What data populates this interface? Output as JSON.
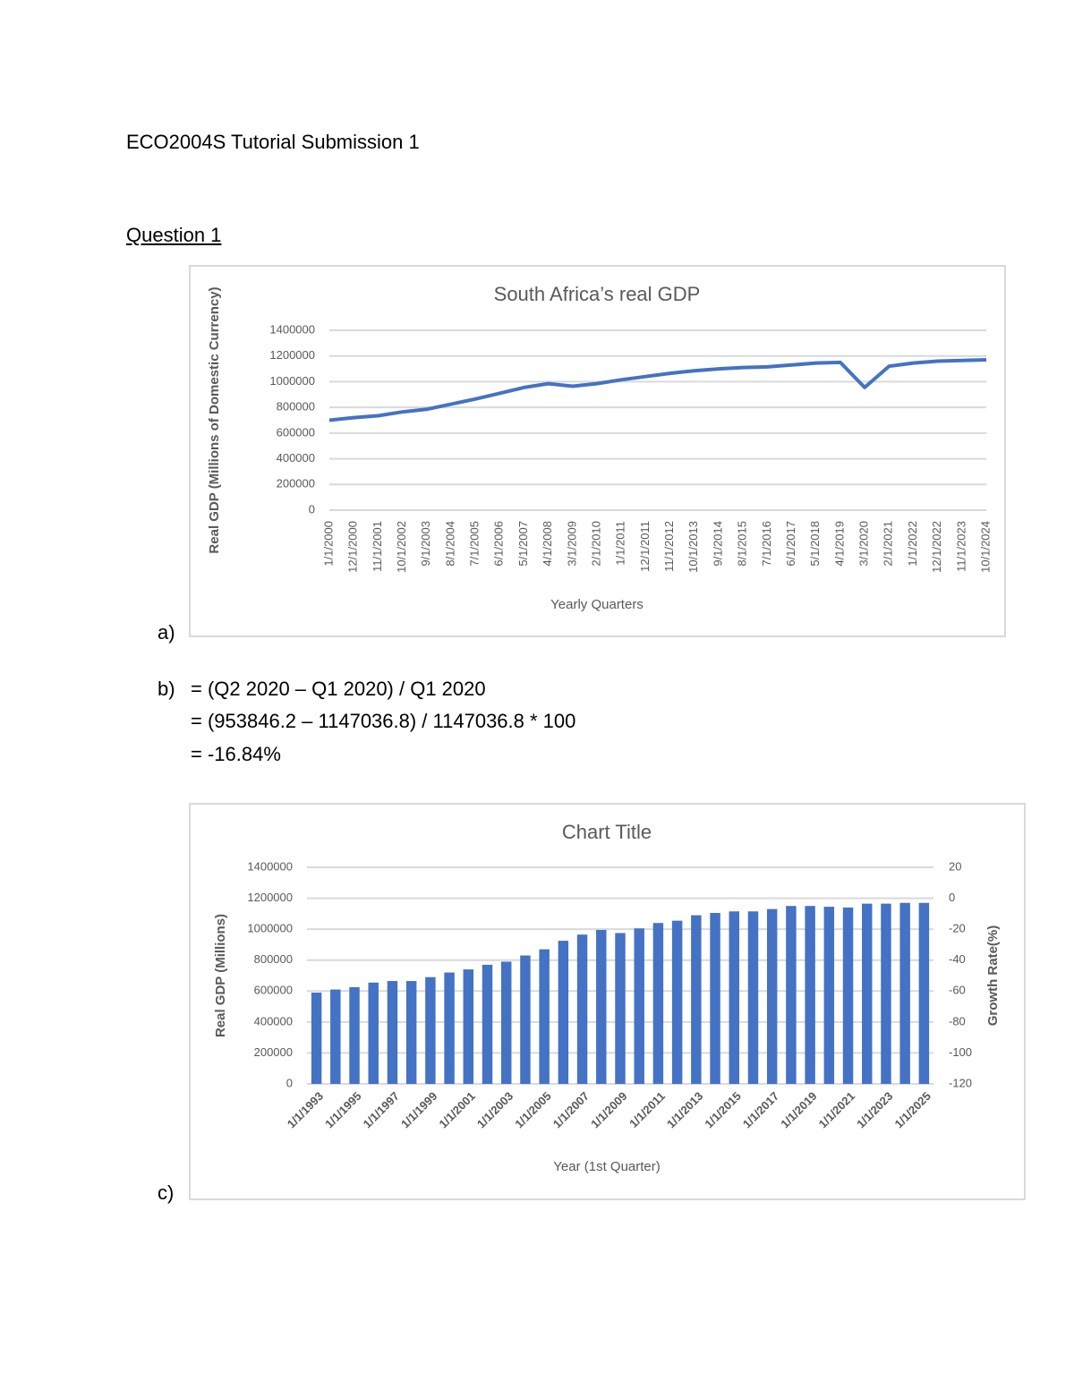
{
  "document": {
    "title": "ECO2004S Tutorial Submission 1",
    "heading": "Question 1",
    "part_a": "a)",
    "part_b": "b)",
    "part_c": "c)",
    "formula": [
      "= (Q2 2020 – Q1 2020) / Q1 2020",
      "= (953846.2 – 1147036.8) / 1147036.8 * 100",
      "= -16.84%"
    ]
  },
  "chart_data": [
    {
      "type": "line",
      "title": "South Africa’s real GDP",
      "xlabel": "Yearly Quarters",
      "ylabel": "Real GDP (Millions of Domestic Currency)",
      "categories": [
        "1/1/2000",
        "12/1/2000",
        "11/1/2001",
        "10/1/2002",
        "9/1/2003",
        "8/1/2004",
        "7/1/2005",
        "6/1/2006",
        "5/1/2007",
        "4/1/2008",
        "3/1/2009",
        "2/1/2010",
        "1/1/2011",
        "12/1/2011",
        "11/1/2012",
        "10/1/2013",
        "9/1/2014",
        "8/1/2015",
        "7/1/2016",
        "6/1/2017",
        "5/1/2018",
        "4/1/2019",
        "3/1/2020",
        "2/1/2021",
        "1/1/2022",
        "12/1/2022",
        "11/1/2023",
        "10/1/2024"
      ],
      "values": [
        700000,
        720000,
        735000,
        765000,
        785000,
        825000,
        865000,
        910000,
        955000,
        985000,
        965000,
        985000,
        1015000,
        1040000,
        1065000,
        1085000,
        1100000,
        1110000,
        1115000,
        1130000,
        1145000,
        1150000,
        955000,
        1120000,
        1145000,
        1160000,
        1165000,
        1170000
      ],
      "color": "#4472c4",
      "ylim": [
        0,
        1400000
      ],
      "yticks": [
        0,
        200000,
        400000,
        600000,
        800000,
        1000000,
        1200000,
        1400000
      ],
      "grid": true
    },
    {
      "type": "bar",
      "title": "Chart Title",
      "xlabel": "Year (1st Quarter)",
      "ylabel": "Real GDP (Millions)",
      "y2label": "Growth Rate(%)",
      "categories": [
        "1/1/1993",
        null,
        "1/1/1995",
        null,
        "1/1/1997",
        null,
        "1/1/1999",
        null,
        "1/1/2001",
        null,
        "1/1/2003",
        null,
        "1/1/2005",
        null,
        "1/1/2007",
        null,
        "1/1/2009",
        null,
        "1/1/2011",
        null,
        "1/1/2013",
        null,
        "1/1/2015",
        null,
        "1/1/2017",
        null,
        "1/1/2019",
        null,
        "1/1/2021",
        null,
        "1/1/2023",
        null,
        "1/1/2025"
      ],
      "values": [
        590000,
        610000,
        625000,
        655000,
        665000,
        665000,
        690000,
        720000,
        740000,
        770000,
        790000,
        830000,
        870000,
        925000,
        965000,
        995000,
        975000,
        1005000,
        1040000,
        1055000,
        1090000,
        1105000,
        1115000,
        1115000,
        1130000,
        1150000,
        1150000,
        1145000,
        1140000,
        1165000,
        1165000,
        1170000,
        1170000
      ],
      "color": "#4472c4",
      "ylim": [
        0,
        1400000
      ],
      "yticks": [
        0,
        200000,
        400000,
        600000,
        800000,
        1000000,
        1200000,
        1400000
      ],
      "y2lim": [
        -120,
        20
      ],
      "y2ticks": [
        -120,
        -100,
        -80,
        -60,
        -40,
        -20,
        0,
        20
      ],
      "grid": true
    }
  ]
}
